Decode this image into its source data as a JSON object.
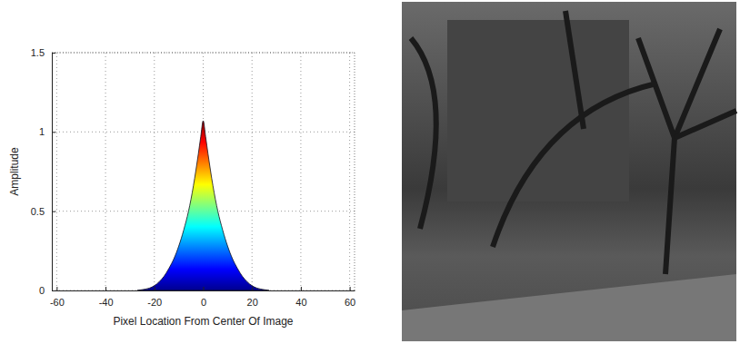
{
  "chart_data": {
    "type": "area",
    "x_label": "Pixel Location From Center Of Image",
    "y_label": "Amplitude",
    "x": [
      -27,
      -25,
      -22,
      -20,
      -18,
      -16,
      -14,
      -12,
      -10,
      -8,
      -6,
      -4,
      -2,
      -1,
      0,
      1,
      2,
      4,
      6,
      8,
      10,
      12,
      14,
      16,
      18,
      20,
      22,
      25,
      27
    ],
    "values": [
      0,
      0.005,
      0.015,
      0.03,
      0.055,
      0.09,
      0.14,
      0.2,
      0.28,
      0.38,
      0.5,
      0.66,
      0.86,
      0.97,
      1.07,
      0.97,
      0.86,
      0.66,
      0.5,
      0.38,
      0.28,
      0.2,
      0.14,
      0.09,
      0.055,
      0.03,
      0.015,
      0.005,
      0
    ],
    "xlim": [
      -62,
      62
    ],
    "xticks": [
      -60,
      -40,
      -20,
      0,
      20,
      40,
      60
    ],
    "ylim": [
      0,
      1.5
    ],
    "yticks": [
      0,
      0.5,
      1,
      1.5
    ],
    "grid": true
  }
}
